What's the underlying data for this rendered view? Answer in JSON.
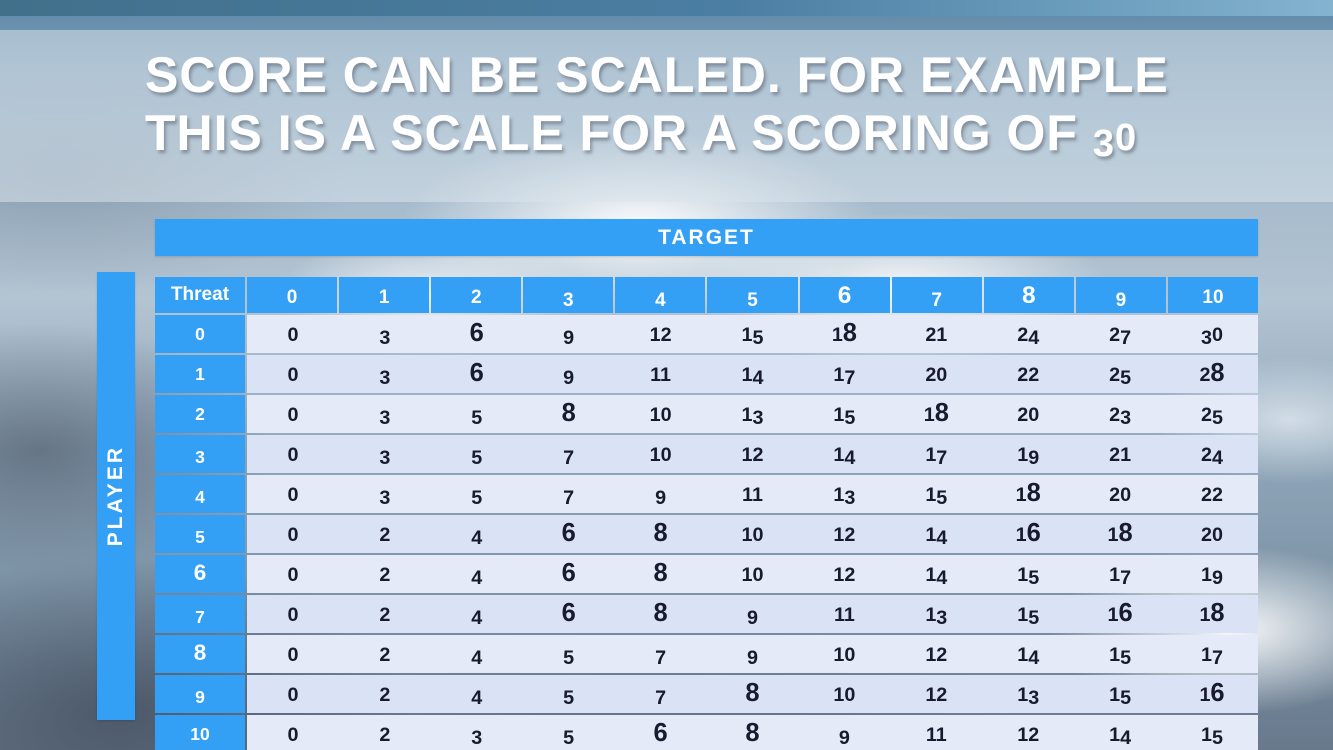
{
  "slide": {
    "title_line1": "SCORE CAN BE SCALED. FOR EXAMPLE",
    "title_line2": "THIS IS A SCALE FOR A SCORING OF 30"
  },
  "table": {
    "target_label": "TARGET",
    "player_label": "PLAYER",
    "corner_label": "Threat",
    "column_headers": [
      "0",
      "1",
      "2",
      "3",
      "4",
      "5",
      "6",
      "7",
      "8",
      "9",
      "10"
    ],
    "row_headers": [
      "0",
      "1",
      "2",
      "3",
      "4",
      "5",
      "6",
      "7",
      "8",
      "9",
      "10"
    ],
    "rows": [
      [
        0,
        3,
        6,
        9,
        12,
        15,
        18,
        21,
        24,
        27,
        30
      ],
      [
        0,
        3,
        6,
        9,
        11,
        14,
        17,
        20,
        22,
        25,
        28
      ],
      [
        0,
        3,
        5,
        8,
        10,
        13,
        15,
        18,
        20,
        23,
        25
      ],
      [
        0,
        3,
        5,
        7,
        10,
        12,
        14,
        17,
        19,
        21,
        24
      ],
      [
        0,
        3,
        5,
        7,
        9,
        11,
        13,
        15,
        18,
        20,
        22
      ],
      [
        0,
        2,
        4,
        6,
        8,
        10,
        12,
        14,
        16,
        18,
        20
      ],
      [
        0,
        2,
        4,
        6,
        8,
        10,
        12,
        14,
        15,
        17,
        19
      ],
      [
        0,
        2,
        4,
        6,
        8,
        9,
        11,
        13,
        15,
        16,
        18
      ],
      [
        0,
        2,
        4,
        5,
        7,
        9,
        10,
        12,
        14,
        15,
        17
      ],
      [
        0,
        2,
        4,
        5,
        7,
        8,
        10,
        12,
        13,
        15,
        16
      ],
      [
        0,
        2,
        3,
        5,
        6,
        8,
        9,
        11,
        12,
        14,
        15
      ]
    ]
  },
  "colors": {
    "accent_blue": "#33a0f5",
    "cell_light": "#e4eaf8",
    "cell_alt": "#dae3f5",
    "text_dark": "#181a2e"
  }
}
